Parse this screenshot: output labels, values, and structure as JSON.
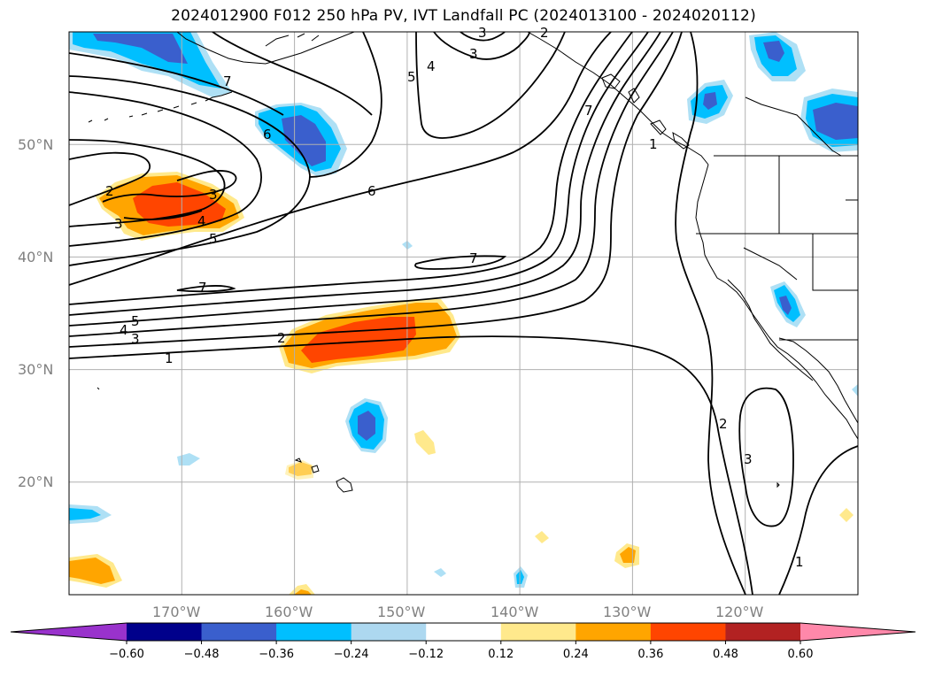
{
  "title": "2024012900 F012 250 hPa PV, IVT Landfall PC (2024013100 - 2024020112)",
  "map": {
    "lat_labels": [
      {
        "value": 50,
        "text": "50°N"
      },
      {
        "value": 40,
        "text": "40°N"
      },
      {
        "value": 30,
        "text": "30°N"
      },
      {
        "value": 20,
        "text": "20°N"
      }
    ],
    "lon_labels": [
      {
        "value": -170,
        "text": "170°W"
      },
      {
        "value": -160,
        "text": "160°W"
      },
      {
        "value": -150,
        "text": "150°W"
      },
      {
        "value": -140,
        "text": "140°W"
      },
      {
        "value": -130,
        "text": "130°W"
      },
      {
        "value": -120,
        "text": "120°W"
      }
    ],
    "extent": {
      "lon_min": -180,
      "lon_max": -110,
      "lat_min": 10,
      "lat_max": 60
    },
    "grid": true,
    "contour_labels": [
      "1",
      "2",
      "3",
      "4",
      "5",
      "6",
      "7"
    ],
    "contour_levels_inline": [
      {
        "text": "2"
      },
      {
        "text": "3"
      },
      {
        "text": "3"
      },
      {
        "text": "4"
      },
      {
        "text": "5"
      },
      {
        "text": "6"
      },
      {
        "text": "6"
      },
      {
        "text": "7"
      },
      {
        "text": "7"
      },
      {
        "text": "7"
      },
      {
        "text": "5"
      },
      {
        "text": "4"
      },
      {
        "text": "3"
      },
      {
        "text": "1"
      },
      {
        "text": "2"
      },
      {
        "text": "3"
      },
      {
        "text": "4"
      },
      {
        "text": "5"
      },
      {
        "text": "1"
      },
      {
        "text": "2"
      },
      {
        "text": "3"
      },
      {
        "text": "7"
      },
      {
        "text": "3"
      },
      {
        "text": "2"
      },
      {
        "text": "1"
      }
    ]
  },
  "colorbar": {
    "ticks": [
      "−0.60",
      "−0.48",
      "−0.36",
      "−0.24",
      "−0.12",
      "0.12",
      "0.24",
      "0.36",
      "0.48",
      "0.60"
    ],
    "colors": [
      "#9932cc",
      "#00008b",
      "#3a5fcd",
      "#00bfff",
      "#add8f0",
      "#ffffff",
      "#ffe98c",
      "#ffa500",
      "#ff4500",
      "#b22222",
      "#ff88aa"
    ]
  }
}
